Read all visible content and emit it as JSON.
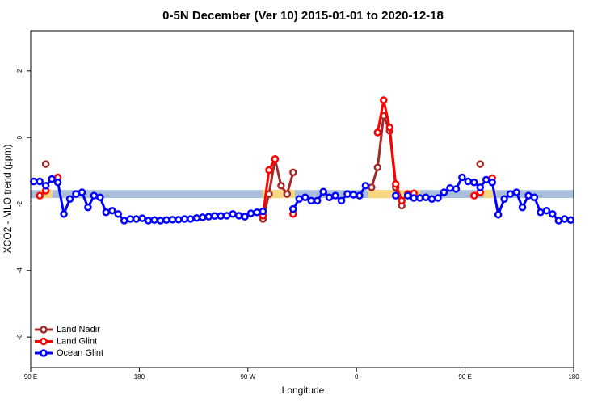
{
  "chart_data": {
    "type": "line",
    "title": "0-5N December (Ver 10)   2015-01-01 to 2020-12-18",
    "xlabel": "Longitude",
    "ylabel": "XCO2 - MLO trend (ppm)",
    "xlim": [
      90,
      540
    ],
    "ylim": [
      -6.92,
      3.21
    ],
    "xticks": [
      {
        "value": 90,
        "label": "90 E"
      },
      180,
      {
        "value": 270,
        "label": "90 W"
      },
      {
        "value": 360,
        "label": "0"
      },
      {
        "value": 450,
        "label": "90 E"
      },
      {
        "value": 540,
        "label": "180"
      }
    ],
    "yticks": [
      -6,
      -4,
      -2,
      0,
      2
    ],
    "band": {
      "ylim": [
        -1.82,
        -1.58
      ],
      "color": "#a9bedb"
    },
    "land_segments": {
      "color": "#f8d77e",
      "x": [
        [
          98,
          108
        ],
        [
          282,
          309
        ],
        [
          370,
          413
        ],
        [
          465,
          476
        ]
      ]
    },
    "legend": "bottom-left",
    "series": [
      {
        "name": "Land Nadir",
        "color": "#a52a2a",
        "x": [
          102.5,
          282.5,
          287.5,
          292.5,
          297.5,
          302.5,
          307.5,
          372.5,
          377.5,
          382.5,
          387.5,
          392.5,
          397.5,
          462.5
        ],
        "values": [
          -0.8,
          -2.45,
          -1.7,
          -0.65,
          -1.45,
          -1.7,
          -1.05,
          -1.5,
          -0.9,
          0.65,
          0.2,
          -1.5,
          -2.05,
          -0.8
        ]
      },
      {
        "name": "Land Glint",
        "color": "#ff0000",
        "x": [
          97.5,
          102.5,
          112.5,
          282.5,
          287.5,
          292.5,
          307.5,
          377.5,
          382.5,
          387.5,
          392.5,
          397.5,
          402.5,
          407.5,
          457.5,
          462.5,
          472.5
        ],
        "values": [
          -1.75,
          -1.6,
          -1.2,
          -2.35,
          -0.98,
          -0.65,
          -2.3,
          0.15,
          1.12,
          0.3,
          -1.4,
          -1.9,
          -1.7,
          -1.68,
          -1.75,
          -1.65,
          -1.22
        ]
      },
      {
        "name": "Ocean Glint",
        "color": "#0000ff",
        "x": [
          92.5,
          97.5,
          102.5,
          107.5,
          112.5,
          117.5,
          122.5,
          127.5,
          132.5,
          137.5,
          142.5,
          147.5,
          152.5,
          157.5,
          162.5,
          167.5,
          172.5,
          177.5,
          182.5,
          187.5,
          192.5,
          197.5,
          202.5,
          207.5,
          212.5,
          217.5,
          222.5,
          227.5,
          232.5,
          237.5,
          242.5,
          247.5,
          252.5,
          257.5,
          262.5,
          267.5,
          272.5,
          277.5,
          282.5,
          307.5,
          312.5,
          317.5,
          322.5,
          327.5,
          332.5,
          337.5,
          342.5,
          347.5,
          352.5,
          357.5,
          362.5,
          367.5,
          392.5,
          402.5,
          407.5,
          412.5,
          417.5,
          422.5,
          427.5,
          432.5,
          437.5,
          442.5,
          447.5,
          452.5,
          457.5,
          462.5,
          467.5,
          472.5,
          477.5,
          482.5,
          487.5,
          492.5,
          497.5,
          502.5,
          507.5,
          512.5,
          517.5,
          522.5,
          527.5,
          532.5,
          537.5
        ],
        "values": [
          -1.32,
          -1.32,
          -1.45,
          -1.25,
          -1.35,
          -2.3,
          -1.85,
          -1.7,
          -1.65,
          -2.1,
          -1.75,
          -1.8,
          -2.25,
          -2.2,
          -2.3,
          -2.5,
          -2.45,
          -2.45,
          -2.43,
          -2.5,
          -2.48,
          -2.5,
          -2.48,
          -2.47,
          -2.47,
          -2.45,
          -2.45,
          -2.42,
          -2.4,
          -2.38,
          -2.36,
          -2.36,
          -2.35,
          -2.3,
          -2.35,
          -2.38,
          -2.28,
          -2.25,
          -2.22,
          -2.15,
          -1.85,
          -1.8,
          -1.9,
          -1.9,
          -1.63,
          -1.8,
          -1.75,
          -1.9,
          -1.7,
          -1.72,
          -1.75,
          -1.45,
          -1.75,
          -1.75,
          -1.82,
          -1.82,
          -1.8,
          -1.85,
          -1.82,
          -1.65,
          -1.52,
          -1.55,
          -1.2,
          -1.32,
          -1.35,
          -1.5,
          -1.27,
          -1.35,
          -2.32,
          -1.85,
          -1.7,
          -1.65,
          -2.1,
          -1.75,
          -1.8,
          -2.25,
          -2.2,
          -2.3,
          -2.5,
          -2.45,
          -2.48
        ]
      }
    ]
  }
}
